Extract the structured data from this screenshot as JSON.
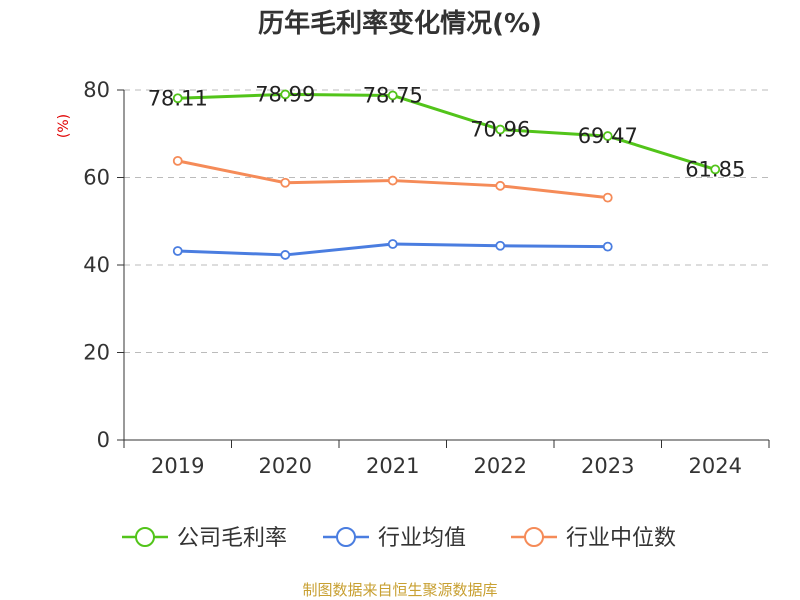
{
  "chart_data": {
    "type": "line",
    "title": "历年毛利率变化情况(%)",
    "ylabel": "(%)",
    "categories": [
      "2019",
      "2020",
      "2021",
      "2022",
      "2023",
      "2024"
    ],
    "ylim": [
      0,
      80
    ],
    "yticks": [
      0,
      20,
      40,
      60,
      80
    ],
    "grid": true,
    "legend_position": "bottom",
    "series": [
      {
        "name": "公司毛利率",
        "color": "#52c41a",
        "values": [
          78.11,
          78.99,
          78.75,
          70.96,
          69.47,
          61.85
        ],
        "show_labels": true
      },
      {
        "name": "行业均值",
        "color": "#4a7de0",
        "values": [
          43.2,
          42.3,
          44.8,
          44.4,
          44.2,
          null
        ],
        "show_labels": false
      },
      {
        "name": "行业中位数",
        "color": "#f58b58",
        "values": [
          63.8,
          58.8,
          59.3,
          58.1,
          55.4,
          null
        ],
        "show_labels": false
      }
    ]
  },
  "source": "制图数据来自恒生聚源数据库"
}
